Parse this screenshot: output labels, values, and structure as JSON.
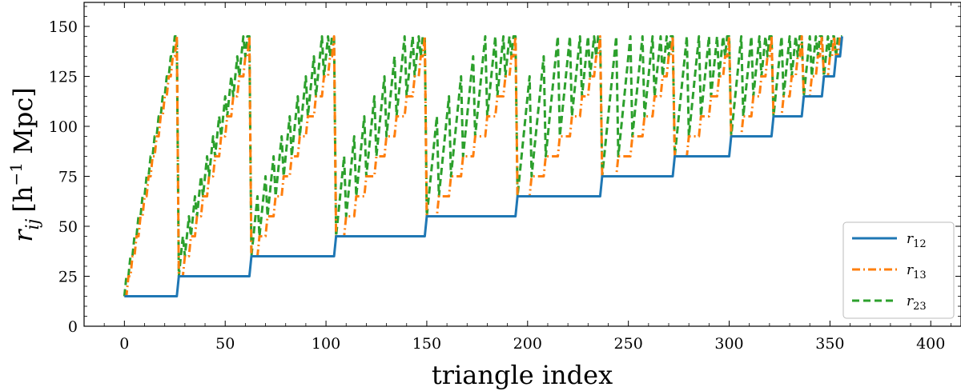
{
  "chart_data": {
    "type": "line",
    "title": "",
    "xlabel": "triangle index",
    "ylabel": "r_ij [h^-1 Mpc]",
    "ylabel_parts": {
      "symbol": "r",
      "subscript": "ij",
      "unit_prefix": "[h",
      "exponent": "−1",
      "unit_suffix": " Mpc]"
    },
    "xlim": [
      -20,
      415
    ],
    "ylim": [
      0,
      162
    ],
    "xticks": [
      0,
      50,
      100,
      150,
      200,
      250,
      300,
      350,
      400
    ],
    "yticks": [
      0,
      25,
      50,
      75,
      100,
      125,
      150
    ],
    "legend_position": "lower-right",
    "bin_width": 10,
    "r_min": 15,
    "r_max": 145,
    "series": [
      {
        "name": "r_12",
        "label_base": "r",
        "label_sub": "12",
        "color": "#1f77b4",
        "style": "solid"
      },
      {
        "name": "r_13",
        "label_base": "r",
        "label_sub": "13",
        "color": "#ff7f0e",
        "style": "dashdot"
      },
      {
        "name": "r_23",
        "label_base": "r",
        "label_sub": "23",
        "color": "#2ca02c",
        "style": "dashed"
      }
    ],
    "generation_rule": "all triangles with 15 <= r12 <= r13 <= r23 <= 145 (step 10) and r23 <= r12 + r13, ordered by r12, then r13, then r23"
  }
}
